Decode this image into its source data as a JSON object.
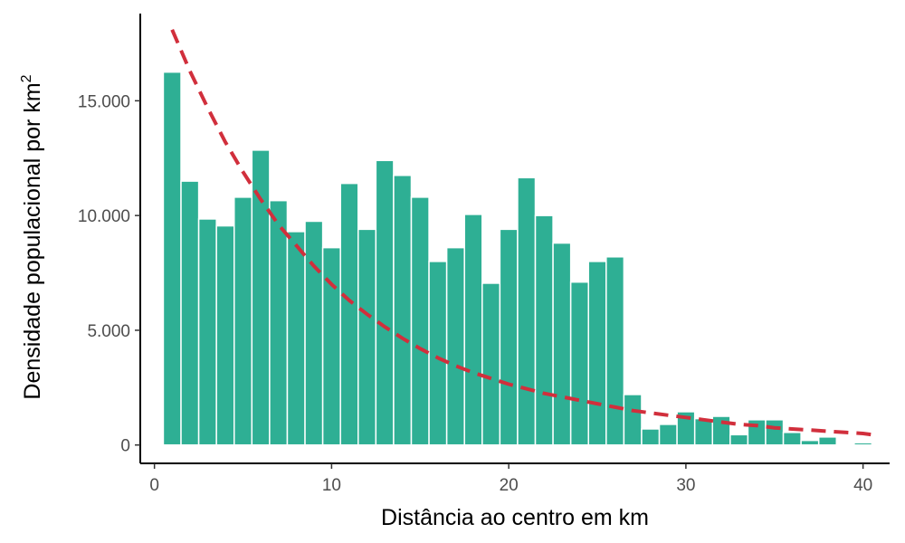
{
  "chart_data": {
    "type": "bar",
    "xlabel": "Distância ao centro em km",
    "ylabel_main": "Densidade populacional por km",
    "ylabel_sup": "2",
    "xlim": [
      -0.8,
      41.5
    ],
    "ylim": [
      -800,
      18800
    ],
    "x_ticks": [
      {
        "value": 0,
        "label": "0"
      },
      {
        "value": 10,
        "label": "10"
      },
      {
        "value": 20,
        "label": "20"
      },
      {
        "value": 30,
        "label": "30"
      },
      {
        "value": 40,
        "label": "40"
      }
    ],
    "y_ticks": [
      {
        "value": 0,
        "label": "0"
      },
      {
        "value": 5000,
        "label": "5.000"
      },
      {
        "value": 10000,
        "label": "10.000"
      },
      {
        "value": 15000,
        "label": "15.000"
      }
    ],
    "bar_color": "#2eaf94",
    "bar_edge_color": "#ffffff",
    "line_color": "#d12f3c",
    "line_style": "dashed",
    "grid": false,
    "series": [
      {
        "type": "bar",
        "x": [
          1,
          2,
          3,
          4,
          5,
          6,
          7,
          8,
          9,
          10,
          11,
          12,
          13,
          14,
          15,
          16,
          17,
          18,
          19,
          20,
          21,
          22,
          23,
          24,
          25,
          26,
          27,
          28,
          29,
          30,
          31,
          32,
          33,
          34,
          35,
          36,
          37,
          38,
          39,
          40
        ],
        "values": [
          16250,
          11500,
          9850,
          9550,
          10800,
          12850,
          10650,
          9300,
          9750,
          8600,
          11400,
          9400,
          12400,
          11750,
          10800,
          8000,
          8600,
          10050,
          7050,
          9400,
          11650,
          10000,
          8800,
          7100,
          8000,
          8200,
          2200,
          700,
          900,
          1450,
          1150,
          1250,
          450,
          1100,
          1100,
          550,
          200,
          350,
          50,
          100
        ]
      },
      {
        "type": "line",
        "x": [
          1,
          2,
          3,
          4,
          5,
          6,
          7,
          8,
          9,
          10,
          11,
          12,
          13,
          14,
          15,
          16,
          17,
          18,
          19,
          20,
          21,
          22,
          23,
          24,
          25,
          26,
          27,
          28,
          29,
          30,
          31,
          32,
          33,
          34,
          35,
          36,
          37,
          38,
          39,
          40,
          40.5
        ],
        "values": [
          18100,
          16300,
          14700,
          13200,
          11900,
          10700,
          9600,
          8700,
          7800,
          7000,
          6300,
          5700,
          5150,
          4650,
          4200,
          3800,
          3450,
          3150,
          2900,
          2650,
          2450,
          2250,
          2100,
          1950,
          1800,
          1650,
          1500,
          1400,
          1300,
          1200,
          1100,
          1000,
          900,
          850,
          750,
          700,
          650,
          600,
          550,
          500,
          450
        ]
      }
    ]
  }
}
